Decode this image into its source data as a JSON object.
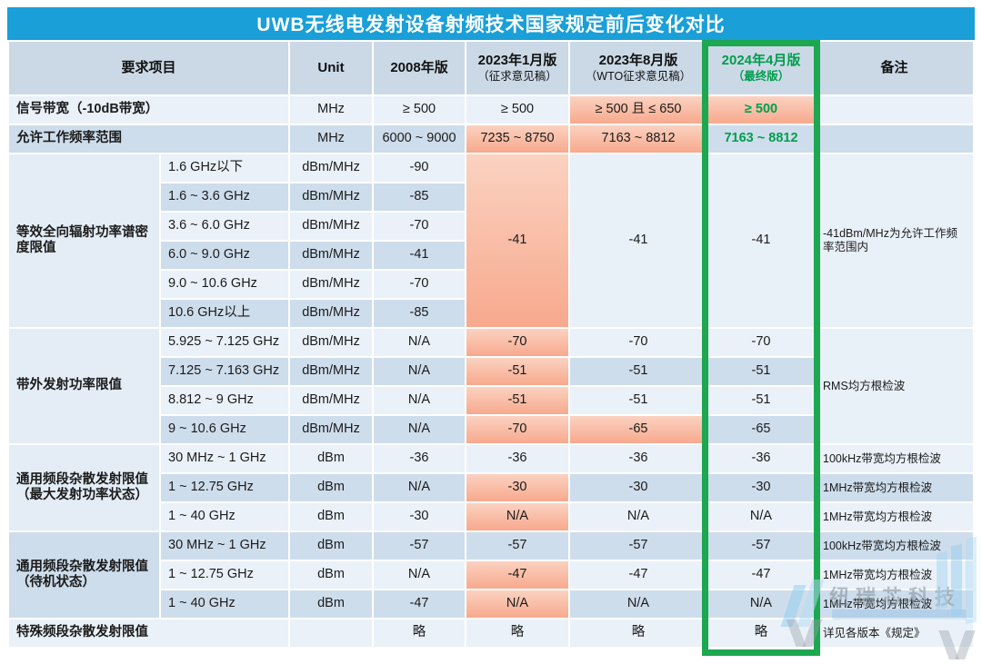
{
  "title": "UWB无线电发射设备射频技术国家规定前后变化对比",
  "colors": {
    "title_bar": "#1A9FD8",
    "header_bg": "#CBD9E7",
    "row_light": "#EAF1F8",
    "row_dark": "#CEDDEC",
    "highlight_orange_top": "#FBD2C1",
    "highlight_orange_bottom": "#F7A98D",
    "final_green": "#1CA750",
    "final_text_green": "#009E4C"
  },
  "header": {
    "col_requirement": "要求项目",
    "col_unit": "Unit",
    "col_2008": "2008年版",
    "col_2023jan": "2023年1月版",
    "col_2023jan_sub": "（征求意见稿）",
    "col_2023aug": "2023年8月版",
    "col_2023aug_sub": "（WTO征求意见稿）",
    "col_2024apr": "2024年4月版",
    "col_2024apr_sub": "（最终版）",
    "col_note": "备注"
  },
  "watermark": {
    "brand": "纽瑞芯科技"
  },
  "table": {
    "rows": [
      {
        "cells": [
          {
            "t": "信号带宽（-10dB带宽）",
            "cs": 2,
            "label": 1,
            "left": 1,
            "n": "row-label-cell"
          },
          {
            "t": "MHz",
            "n": "unit-cell"
          },
          {
            "t": "≥ 500"
          },
          {
            "t": "≥ 500"
          },
          {
            "t": "≥ 500 且 ≤ 650",
            "bg": "hl"
          },
          {
            "t": "≥ 500",
            "bg": "hl",
            "green": 1
          },
          {
            "t": "",
            "n": "note-cell"
          }
        ]
      },
      {
        "cells": [
          {
            "t": "允许工作频率范围",
            "cs": 2,
            "label": 1,
            "left": 1,
            "n": "row-label-cell"
          },
          {
            "t": "MHz",
            "n": "unit-cell"
          },
          {
            "t": "6000 ~ 9000"
          },
          {
            "t": "7235 ~ 8750",
            "bg": "hl"
          },
          {
            "t": "7163 ~ 8812",
            "bg": "hl"
          },
          {
            "t": "7163 ~ 8812",
            "green": 1
          },
          {
            "t": "",
            "n": "note-cell"
          }
        ]
      },
      {
        "cells": [
          {
            "t": "等效全向辐射功率谱密度限值",
            "rs": 6,
            "bg": "cat",
            "label": 1,
            "left": 1,
            "n": "category-cell"
          },
          {
            "t": "1.6 GHz以下",
            "left": 1,
            "n": "range-cell"
          },
          {
            "t": "dBm/MHz",
            "n": "unit-cell"
          },
          {
            "t": "-90"
          },
          {
            "t": "-41",
            "rs": 6,
            "bg": "hl"
          },
          {
            "t": "-41",
            "rs": 6,
            "bg": "merged"
          },
          {
            "t": "-41",
            "rs": 6,
            "bg": "merged"
          },
          {
            "t": "-41dBm/MHz为允许工作频率范围内",
            "rs": 6,
            "bg": "merged",
            "small": 1,
            "left": 1,
            "n": "note-cell"
          }
        ]
      },
      {
        "cells": [
          {
            "t": "1.6 ~ 3.6 GHz",
            "left": 1,
            "n": "range-cell"
          },
          {
            "t": "dBm/MHz",
            "n": "unit-cell"
          },
          {
            "t": "-85"
          }
        ]
      },
      {
        "cells": [
          {
            "t": "3.6 ~ 6.0 GHz",
            "left": 1,
            "n": "range-cell"
          },
          {
            "t": "dBm/MHz",
            "n": "unit-cell"
          },
          {
            "t": "-70"
          }
        ]
      },
      {
        "cells": [
          {
            "t": "6.0 ~ 9.0 GHz",
            "left": 1,
            "n": "range-cell"
          },
          {
            "t": "dBm/MHz",
            "n": "unit-cell"
          },
          {
            "t": "-41"
          }
        ]
      },
      {
        "cells": [
          {
            "t": "9.0 ~ 10.6 GHz",
            "left": 1,
            "n": "range-cell"
          },
          {
            "t": "dBm/MHz",
            "n": "unit-cell"
          },
          {
            "t": "-70"
          }
        ]
      },
      {
        "cells": [
          {
            "t": "10.6 GHz以上",
            "left": 1,
            "n": "range-cell"
          },
          {
            "t": "dBm/MHz",
            "n": "unit-cell"
          },
          {
            "t": "-85"
          }
        ]
      },
      {
        "cells": [
          {
            "t": "带外发射功率限值",
            "rs": 4,
            "bg": "cat",
            "label": 1,
            "left": 1,
            "n": "category-cell"
          },
          {
            "t": "5.925 ~ 7.125 GHz",
            "left": 1,
            "n": "range-cell"
          },
          {
            "t": "dBm/MHz",
            "n": "unit-cell"
          },
          {
            "t": "N/A"
          },
          {
            "t": "-70",
            "bg": "hl"
          },
          {
            "t": "-70"
          },
          {
            "t": "-70"
          },
          {
            "t": "RMS均方根检波",
            "rs": 4,
            "bg": "merged",
            "small": 1,
            "left": 1,
            "n": "note-cell"
          }
        ]
      },
      {
        "cells": [
          {
            "t": "7.125 ~ 7.163 GHz",
            "left": 1,
            "n": "range-cell"
          },
          {
            "t": "dBm/MHz",
            "n": "unit-cell"
          },
          {
            "t": "N/A"
          },
          {
            "t": "-51",
            "bg": "hl"
          },
          {
            "t": "-51"
          },
          {
            "t": "-51"
          }
        ]
      },
      {
        "cells": [
          {
            "t": "8.812 ~ 9 GHz",
            "left": 1,
            "n": "range-cell"
          },
          {
            "t": "dBm/MHz",
            "n": "unit-cell"
          },
          {
            "t": "N/A"
          },
          {
            "t": "-51",
            "bg": "hl"
          },
          {
            "t": "-51"
          },
          {
            "t": "-51"
          }
        ]
      },
      {
        "cells": [
          {
            "t": "9 ~ 10.6 GHz",
            "left": 1,
            "n": "range-cell"
          },
          {
            "t": "dBm/MHz",
            "n": "unit-cell"
          },
          {
            "t": "N/A"
          },
          {
            "t": "-70",
            "bg": "hl"
          },
          {
            "t": "-65",
            "bg": "hl"
          },
          {
            "t": "-65"
          }
        ]
      },
      {
        "cells": [
          {
            "t": "通用频段杂散发射限值（最大发射功率状态）",
            "rs": 3,
            "bg": "cat",
            "label": 1,
            "left": 1,
            "n": "category-cell"
          },
          {
            "t": "30 MHz ~ 1 GHz",
            "left": 1,
            "n": "range-cell"
          },
          {
            "t": "dBm",
            "n": "unit-cell"
          },
          {
            "t": "-36"
          },
          {
            "t": "-36"
          },
          {
            "t": "-36"
          },
          {
            "t": "-36"
          },
          {
            "t": "100kHz带宽均方根检波",
            "small": 1,
            "left": 1,
            "n": "note-cell"
          }
        ]
      },
      {
        "cells": [
          {
            "t": "1 ~ 12.75 GHz",
            "left": 1,
            "n": "range-cell"
          },
          {
            "t": "dBm",
            "n": "unit-cell"
          },
          {
            "t": "N/A"
          },
          {
            "t": "-30",
            "bg": "hl"
          },
          {
            "t": "-30"
          },
          {
            "t": "-30"
          },
          {
            "t": "1MHz带宽均方根检波",
            "small": 1,
            "left": 1,
            "n": "note-cell"
          }
        ]
      },
      {
        "cells": [
          {
            "t": "1 ~ 40 GHz",
            "left": 1,
            "n": "range-cell"
          },
          {
            "t": "dBm",
            "n": "unit-cell"
          },
          {
            "t": "-30"
          },
          {
            "t": "N/A",
            "bg": "hl"
          },
          {
            "t": "N/A"
          },
          {
            "t": "N/A"
          },
          {
            "t": "1MHz带宽均方根检波",
            "small": 1,
            "left": 1,
            "n": "note-cell"
          }
        ]
      },
      {
        "cells": [
          {
            "t": "通用频段杂散发射限值（待机状态）",
            "rs": 3,
            "bg": "catdark",
            "label": 1,
            "left": 1,
            "n": "category-cell"
          },
          {
            "t": "30 MHz ~ 1 GHz",
            "left": 1,
            "n": "range-cell"
          },
          {
            "t": "dBm",
            "n": "unit-cell"
          },
          {
            "t": "-57"
          },
          {
            "t": "-57"
          },
          {
            "t": "-57"
          },
          {
            "t": "-57"
          },
          {
            "t": "100kHz带宽均方根检波",
            "small": 1,
            "left": 1,
            "n": "note-cell"
          }
        ]
      },
      {
        "cells": [
          {
            "t": "1 ~ 12.75 GHz",
            "left": 1,
            "n": "range-cell"
          },
          {
            "t": "dBm",
            "n": "unit-cell"
          },
          {
            "t": "N/A"
          },
          {
            "t": "-47",
            "bg": "hl"
          },
          {
            "t": "-47"
          },
          {
            "t": "-47"
          },
          {
            "t": "1MHz带宽均方根检波",
            "small": 1,
            "left": 1,
            "n": "note-cell"
          }
        ]
      },
      {
        "cells": [
          {
            "t": "1 ~ 40 GHz",
            "left": 1,
            "n": "range-cell"
          },
          {
            "t": "dBm",
            "n": "unit-cell"
          },
          {
            "t": "-47"
          },
          {
            "t": "N/A",
            "bg": "hl"
          },
          {
            "t": "N/A"
          },
          {
            "t": "N/A"
          },
          {
            "t": "1MHz带宽均方根检波",
            "small": 1,
            "left": 1,
            "n": "note-cell"
          }
        ]
      },
      {
        "cells": [
          {
            "t": "特殊频段杂散发射限值",
            "cs": 2,
            "label": 1,
            "left": 1,
            "n": "row-label-cell"
          },
          {
            "t": "",
            "n": "unit-cell"
          },
          {
            "t": "略"
          },
          {
            "t": "略"
          },
          {
            "t": "略"
          },
          {
            "t": "略"
          },
          {
            "t": "详见各版本《规定》",
            "small": 1,
            "left": 1,
            "n": "note-cell"
          }
        ]
      }
    ]
  }
}
